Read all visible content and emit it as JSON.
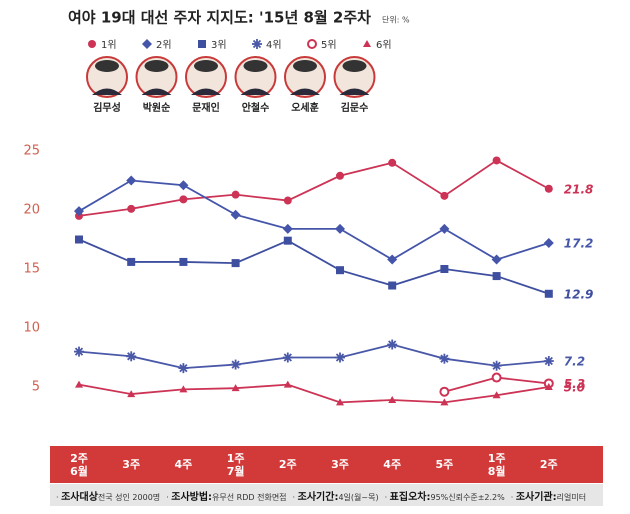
{
  "chart_data": {
    "type": "line",
    "title": "여야 19대 대선 주자 지지도: '15년 8월 2주차",
    "unit": "단위: %",
    "candidates": [
      "김무성",
      "박원순",
      "문재인",
      "안철수",
      "오세훈",
      "김문수"
    ],
    "categories": [
      "2주\n6월",
      "3주",
      "4주",
      "1주\n7월",
      "2주",
      "3주",
      "4주",
      "5주",
      "1주\n8월",
      "2주"
    ],
    "ylim": [
      0,
      25
    ],
    "yticks": [
      5,
      10,
      15,
      20,
      25
    ],
    "series": [
      {
        "name": "1위",
        "marker": "circle",
        "color": "#cc3355",
        "values": [
          19.5,
          20.1,
          20.9,
          21.3,
          20.8,
          22.9,
          24.0,
          21.2,
          24.2,
          21.8
        ],
        "value_labels": [
          null,
          null,
          null,
          null,
          null,
          null,
          null,
          null,
          null,
          "21.8"
        ]
      },
      {
        "name": "2위",
        "marker": "diamond",
        "color": "#4455aa",
        "values": [
          19.9,
          22.5,
          22.1,
          19.6,
          18.4,
          18.4,
          15.8,
          18.4,
          15.8,
          17.2
        ],
        "value_labels": [
          null,
          null,
          null,
          null,
          null,
          null,
          null,
          null,
          null,
          "17.2"
        ]
      },
      {
        "name": "3위",
        "marker": "square",
        "color": "#3f4fa0",
        "values": [
          17.5,
          15.6,
          15.6,
          15.5,
          17.4,
          14.9,
          13.6,
          15.0,
          14.4,
          12.9
        ],
        "value_labels": [
          null,
          null,
          null,
          null,
          null,
          null,
          null,
          null,
          null,
          "12.9"
        ]
      },
      {
        "name": "4위",
        "marker": "asterisk",
        "color": "#4a58a8",
        "values": [
          8.0,
          7.6,
          6.6,
          6.9,
          7.5,
          7.5,
          8.6,
          7.4,
          6.8,
          7.2
        ],
        "value_labels": [
          null,
          null,
          null,
          null,
          null,
          null,
          null,
          null,
          null,
          "7.2"
        ]
      },
      {
        "name": "5위",
        "marker": "ring",
        "color": "#cc3355",
        "values": [
          null,
          null,
          null,
          null,
          null,
          null,
          null,
          4.6,
          5.8,
          5.3
        ],
        "value_labels": [
          null,
          null,
          null,
          null,
          null,
          null,
          null,
          null,
          null,
          "5.3"
        ]
      },
      {
        "name": "6위",
        "marker": "triangle",
        "color": "#cc3355",
        "values": [
          5.2,
          4.4,
          4.8,
          4.9,
          5.2,
          3.7,
          3.9,
          3.7,
          4.3,
          5.0
        ],
        "value_labels": [
          null,
          null,
          null,
          null,
          null,
          null,
          null,
          null,
          null,
          "5.0"
        ]
      }
    ],
    "footer": [
      {
        "label": "조사대상",
        "text": "전국 성인 2000명"
      },
      {
        "label": "조사방법:",
        "text": "유무선 RDD 전화면접"
      },
      {
        "label": "조사기간:",
        "text": "4일(월~목)"
      },
      {
        "label": "표집오차:",
        "text": "95%신뢰수준±2.2%"
      },
      {
        "label": "조사기관:",
        "text": "리얼미터"
      }
    ]
  }
}
